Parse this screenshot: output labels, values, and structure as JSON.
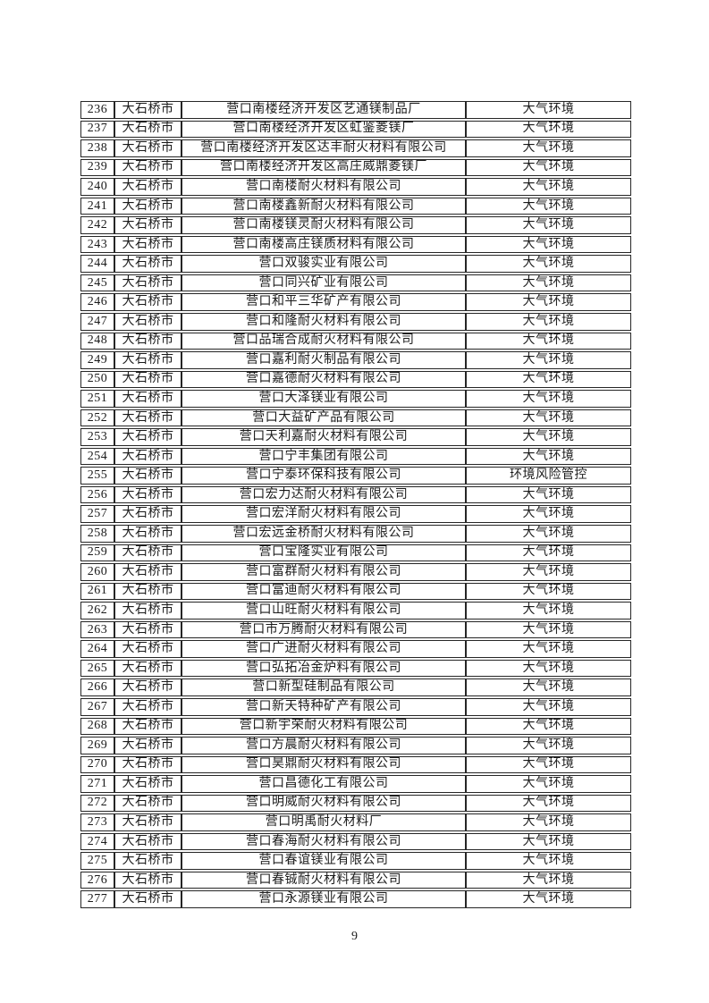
{
  "page_number": "9",
  "table": {
    "rows": [
      {
        "no": "236",
        "city": "大石桥市",
        "company": "营口南楼经济开发区艺通镁制品厂",
        "category": "大气环境"
      },
      {
        "no": "237",
        "city": "大石桥市",
        "company": "营口南楼经济开发区虹鉴菱镁厂",
        "category": "大气环境"
      },
      {
        "no": "238",
        "city": "大石桥市",
        "company": "营口南楼经济开发区达丰耐火材料有限公司",
        "category": "大气环境"
      },
      {
        "no": "239",
        "city": "大石桥市",
        "company": "营口南楼经济开发区高庄威鼎菱镁厂",
        "category": "大气环境"
      },
      {
        "no": "240",
        "city": "大石桥市",
        "company": "营口南楼耐火材料有限公司",
        "category": "大气环境"
      },
      {
        "no": "241",
        "city": "大石桥市",
        "company": "营口南楼鑫新耐火材料有限公司",
        "category": "大气环境"
      },
      {
        "no": "242",
        "city": "大石桥市",
        "company": "营口南楼镁灵耐火材料有限公司",
        "category": "大气环境"
      },
      {
        "no": "243",
        "city": "大石桥市",
        "company": "营口南楼高庄镁质材料有限公司",
        "category": "大气环境"
      },
      {
        "no": "244",
        "city": "大石桥市",
        "company": "营口双骏实业有限公司",
        "category": "大气环境"
      },
      {
        "no": "245",
        "city": "大石桥市",
        "company": "营口同兴矿业有限公司",
        "category": "大气环境"
      },
      {
        "no": "246",
        "city": "大石桥市",
        "company": "营口和平三华矿产有限公司",
        "category": "大气环境"
      },
      {
        "no": "247",
        "city": "大石桥市",
        "company": "营口和隆耐火材料有限公司",
        "category": "大气环境"
      },
      {
        "no": "248",
        "city": "大石桥市",
        "company": "营口品瑞合成耐火材料有限公司",
        "category": "大气环境"
      },
      {
        "no": "249",
        "city": "大石桥市",
        "company": "营口嘉利耐火制品有限公司",
        "category": "大气环境"
      },
      {
        "no": "250",
        "city": "大石桥市",
        "company": "营口嘉德耐火材料有限公司",
        "category": "大气环境"
      },
      {
        "no": "251",
        "city": "大石桥市",
        "company": "营口大泽镁业有限公司",
        "category": "大气环境"
      },
      {
        "no": "252",
        "city": "大石桥市",
        "company": "营口大益矿产品有限公司",
        "category": "大气环境"
      },
      {
        "no": "253",
        "city": "大石桥市",
        "company": "营口天利嘉耐火材料有限公司",
        "category": "大气环境"
      },
      {
        "no": "254",
        "city": "大石桥市",
        "company": "营口宁丰集团有限公司",
        "category": "大气环境"
      },
      {
        "no": "255",
        "city": "大石桥市",
        "company": "营口宁泰环保科技有限公司",
        "category": "环境风险管控"
      },
      {
        "no": "256",
        "city": "大石桥市",
        "company": "营口宏力达耐火材料有限公司",
        "category": "大气环境"
      },
      {
        "no": "257",
        "city": "大石桥市",
        "company": "营口宏洋耐火材料有限公司",
        "category": "大气环境"
      },
      {
        "no": "258",
        "city": "大石桥市",
        "company": "营口宏远金桥耐火材料有限公司",
        "category": "大气环境"
      },
      {
        "no": "259",
        "city": "大石桥市",
        "company": "营口宝隆实业有限公司",
        "category": "大气环境"
      },
      {
        "no": "260",
        "city": "大石桥市",
        "company": "营口富群耐火材料有限公司",
        "category": "大气环境"
      },
      {
        "no": "261",
        "city": "大石桥市",
        "company": "营口富迪耐火材料有限公司",
        "category": "大气环境"
      },
      {
        "no": "262",
        "city": "大石桥市",
        "company": "营口山旺耐火材料有限公司",
        "category": "大气环境"
      },
      {
        "no": "263",
        "city": "大石桥市",
        "company": "营口市万腾耐火材料有限公司",
        "category": "大气环境"
      },
      {
        "no": "264",
        "city": "大石桥市",
        "company": "营口广进耐火材料有限公司",
        "category": "大气环境"
      },
      {
        "no": "265",
        "city": "大石桥市",
        "company": "营口弘拓冶金炉料有限公司",
        "category": "大气环境"
      },
      {
        "no": "266",
        "city": "大石桥市",
        "company": "营口新型硅制品有限公司",
        "category": "大气环境"
      },
      {
        "no": "267",
        "city": "大石桥市",
        "company": "营口新天特种矿产有限公司",
        "category": "大气环境"
      },
      {
        "no": "268",
        "city": "大石桥市",
        "company": "营口新宇荣耐火材料有限公司",
        "category": "大气环境"
      },
      {
        "no": "269",
        "city": "大石桥市",
        "company": "营口方晨耐火材料有限公司",
        "category": "大气环境"
      },
      {
        "no": "270",
        "city": "大石桥市",
        "company": "营口昊鼎耐火材料有限公司",
        "category": "大气环境"
      },
      {
        "no": "271",
        "city": "大石桥市",
        "company": "营口昌德化工有限公司",
        "category": "大气环境"
      },
      {
        "no": "272",
        "city": "大石桥市",
        "company": "营口明威耐火材料有限公司",
        "category": "大气环境"
      },
      {
        "no": "273",
        "city": "大石桥市",
        "company": "营口明禹耐火材料厂",
        "category": "大气环境"
      },
      {
        "no": "274",
        "city": "大石桥市",
        "company": "营口春海耐火材料有限公司",
        "category": "大气环境"
      },
      {
        "no": "275",
        "city": "大石桥市",
        "company": "营口春谊镁业有限公司",
        "category": "大气环境"
      },
      {
        "no": "276",
        "city": "大石桥市",
        "company": "营口春铖耐火材料有限公司",
        "category": "大气环境"
      },
      {
        "no": "277",
        "city": "大石桥市",
        "company": "营口永源镁业有限公司",
        "category": "大气环境"
      }
    ]
  }
}
